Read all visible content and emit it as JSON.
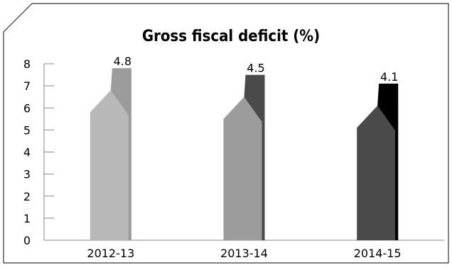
{
  "chart_data": {
    "type": "bar",
    "title": "Gross fiscal deficit (%)",
    "xlabel": "",
    "ylabel": "",
    "categories": [
      "2012-13",
      "2013-14",
      "2014-15"
    ],
    "values": [
      4.8,
      4.5,
      4.1
    ],
    "data_labels": [
      "4.8",
      "4.5",
      "4.1"
    ],
    "ylim": [
      0,
      8
    ],
    "yticks": [
      "0",
      "1",
      "2",
      "3",
      "4",
      "5",
      "6",
      "7",
      "8"
    ],
    "grid": false,
    "legend": "none",
    "colors": {
      "front": [
        "#b8b8b8",
        "#9c9c9c",
        "#4a4a4a"
      ],
      "back": [
        "#9c9c9c",
        "#4a4a4a",
        "#000000"
      ]
    }
  }
}
